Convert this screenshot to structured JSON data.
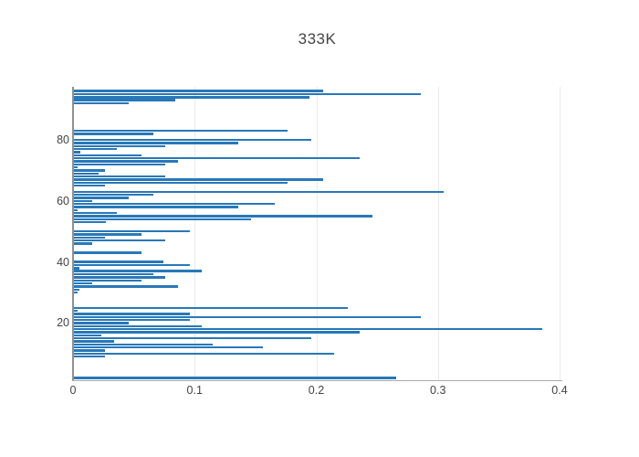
{
  "chart_data": {
    "type": "bar",
    "orientation": "horizontal",
    "title": "333K",
    "xlabel": "",
    "ylabel": "",
    "xlim": [
      0,
      0.4015
    ],
    "grid": "vertical-only",
    "legend": "none",
    "bar_color": "#2878b8",
    "grid_color": "#ebebeb",
    "axis_color": "#909090",
    "title_color": "#444444",
    "tick_color": "#444444",
    "x_ticks": [
      "0",
      "0.1",
      "0.2",
      "0.3",
      "0.4"
    ],
    "x_tick_values": [
      0,
      0.1,
      0.2,
      0.3,
      0.4
    ],
    "y_ticks": [
      "20",
      "40",
      "60",
      "80"
    ],
    "y_tick_rows": [
      20,
      40,
      60,
      80
    ],
    "n_rows": 96,
    "values_bottom_to_top": [
      0,
      0.266,
      0,
      0,
      0,
      0,
      0,
      0,
      0.026,
      0.215,
      0.026,
      0.156,
      0.115,
      0.034,
      0.196,
      0.023,
      0.236,
      0.386,
      0.106,
      0.046,
      0.096,
      0.286,
      0.096,
      0.004,
      0.226,
      0,
      0,
      0,
      0,
      0.004,
      0.005,
      0.086,
      0.016,
      0.056,
      0.076,
      0.066,
      0.106,
      0.005,
      0.096,
      0.074,
      0,
      0,
      0.056,
      0,
      0,
      0.016,
      0.076,
      0.026,
      0.056,
      0.096,
      0,
      0,
      0.027,
      0.146,
      0.246,
      0.036,
      0.004,
      0.136,
      0.166,
      0.016,
      0.046,
      0.066,
      0.305,
      0,
      0.026,
      0.176,
      0.206,
      0.076,
      0.021,
      0.026,
      0.004,
      0.076,
      0.086,
      0.236,
      0.056,
      0.006,
      0.036,
      0.076,
      0.136,
      0.196,
      0,
      0.066,
      0.176,
      0,
      0,
      0,
      0,
      0,
      0,
      0,
      0,
      0.046,
      0.084,
      0.194,
      0.286,
      0.206
    ]
  }
}
